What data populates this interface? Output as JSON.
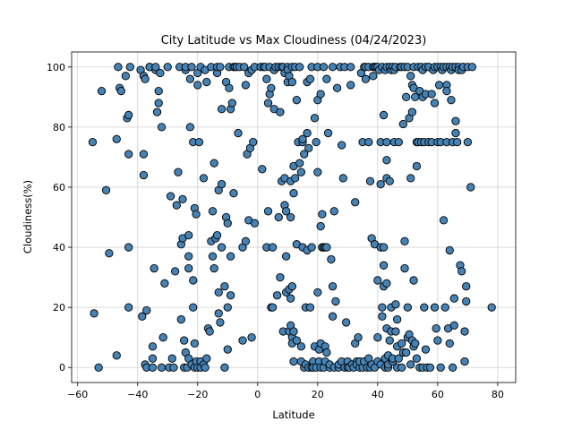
{
  "chart_data": {
    "type": "scatter",
    "title": "City Latitude vs Max Cloudiness (04/24/2023)",
    "xlabel": "Latitude",
    "ylabel": "Cloudiness(%)",
    "xlim": [
      -62,
      86
    ],
    "ylim": [
      -5,
      105
    ],
    "xticks": [
      -60,
      -40,
      -20,
      0,
      20,
      40,
      60,
      80
    ],
    "yticks": [
      0,
      20,
      40,
      60,
      80,
      100
    ],
    "grid": true,
    "marker_color": "#4682b4",
    "marker_edge_color": "#000000",
    "points": [
      [
        -55,
        75
      ],
      [
        -54.5,
        18
      ],
      [
        -53,
        0
      ],
      [
        -52,
        92
      ],
      [
        -50.5,
        59
      ],
      [
        -49.5,
        38
      ],
      [
        -47,
        76
      ],
      [
        -47,
        4
      ],
      [
        -46.5,
        100
      ],
      [
        -46,
        93
      ],
      [
        -45.5,
        92
      ],
      [
        -44,
        97
      ],
      [
        -43.5,
        83
      ],
      [
        -43,
        84
      ],
      [
        -43,
        71
      ],
      [
        -43,
        40
      ],
      [
        -43,
        20
      ],
      [
        -42.5,
        100
      ],
      [
        -39,
        99
      ],
      [
        -38.5,
        17
      ],
      [
        -38,
        97
      ],
      [
        -38,
        71
      ],
      [
        -38,
        64
      ],
      [
        -37.5,
        96
      ],
      [
        -37.5,
        1
      ],
      [
        -37,
        19
      ],
      [
        -37,
        0
      ],
      [
        -36,
        100
      ],
      [
        -36,
        100
      ],
      [
        -35,
        0
      ],
      [
        -35,
        3
      ],
      [
        -35,
        7
      ],
      [
        -34.5,
        33
      ],
      [
        -34,
        99
      ],
      [
        -34,
        100
      ],
      [
        -33.5,
        85
      ],
      [
        -33,
        92
      ],
      [
        -33,
        88
      ],
      [
        -32.5,
        98
      ],
      [
        -32,
        0
      ],
      [
        -32,
        80
      ],
      [
        -31.5,
        10
      ],
      [
        -31,
        28
      ],
      [
        -30,
        100
      ],
      [
        -29.5,
        0
      ],
      [
        -29,
        57
      ],
      [
        -28.5,
        3
      ],
      [
        -28,
        0
      ],
      [
        -27.5,
        32
      ],
      [
        -27,
        54
      ],
      [
        -26.5,
        65
      ],
      [
        -26,
        100
      ],
      [
        -25.5,
        16
      ],
      [
        -25.5,
        41
      ],
      [
        -25,
        43
      ],
      [
        -25,
        56
      ],
      [
        -24.5,
        9
      ],
      [
        -24.5,
        0
      ],
      [
        -24,
        99
      ],
      [
        -24,
        100
      ],
      [
        -24,
        5
      ],
      [
        -23.5,
        0
      ],
      [
        -23,
        3
      ],
      [
        -23,
        33
      ],
      [
        -23,
        37
      ],
      [
        -23,
        44
      ],
      [
        -22.5,
        80
      ],
      [
        -22.5,
        96
      ],
      [
        -22,
        100
      ],
      [
        -22,
        1
      ],
      [
        -21.5,
        75
      ],
      [
        -21.5,
        29
      ],
      [
        -21.5,
        20
      ],
      [
        -21,
        53
      ],
      [
        -21,
        0
      ],
      [
        -21,
        8
      ],
      [
        -20.5,
        51
      ],
      [
        -20.5,
        2
      ],
      [
        -20,
        98
      ],
      [
        -20,
        94
      ],
      [
        -20,
        0
      ],
      [
        -19.5,
        75
      ],
      [
        -19,
        100
      ],
      [
        -19,
        2
      ],
      [
        -19,
        0
      ],
      [
        -18,
        63
      ],
      [
        -18,
        1
      ],
      [
        -17.5,
        0
      ],
      [
        -17.5,
        99
      ],
      [
        -17,
        3
      ],
      [
        -17,
        95
      ],
      [
        -16.5,
        13
      ],
      [
        -16,
        12
      ],
      [
        -15.5,
        100
      ],
      [
        -15.5,
        42
      ],
      [
        -15,
        37
      ],
      [
        -15,
        52
      ],
      [
        -14.5,
        33
      ],
      [
        -14.5,
        68
      ],
      [
        -14,
        43
      ],
      [
        -13.5,
        98
      ],
      [
        -13.5,
        100
      ],
      [
        -13.5,
        44
      ],
      [
        -13,
        59
      ],
      [
        -13,
        25
      ],
      [
        -13,
        18
      ],
      [
        -12.5,
        100
      ],
      [
        -12.5,
        15
      ],
      [
        -12,
        61
      ],
      [
        -12,
        86
      ],
      [
        -12,
        40
      ],
      [
        -11,
        27
      ],
      [
        -11,
        0
      ],
      [
        -10.5,
        95
      ],
      [
        -10.5,
        50
      ],
      [
        -10,
        48
      ],
      [
        -10,
        20
      ],
      [
        -10,
        6
      ],
      [
        -9.5,
        93
      ],
      [
        -9.5,
        100
      ],
      [
        -9,
        86
      ],
      [
        -9,
        37
      ],
      [
        -9,
        24
      ],
      [
        -8.5,
        88
      ],
      [
        -8,
        58
      ],
      [
        -8,
        100
      ],
      [
        -7.5,
        100
      ],
      [
        -7,
        100
      ],
      [
        -6.5,
        78
      ],
      [
        -6,
        100
      ],
      [
        -5,
        40
      ],
      [
        -5,
        9
      ],
      [
        -4.5,
        100
      ],
      [
        -4,
        42
      ],
      [
        -4,
        94
      ],
      [
        -3.5,
        71
      ],
      [
        -3,
        49
      ],
      [
        -3,
        98
      ],
      [
        -2.5,
        73
      ],
      [
        -2,
        99
      ],
      [
        -2,
        10
      ],
      [
        -1.5,
        75
      ],
      [
        -1,
        100
      ],
      [
        -1,
        48
      ],
      [
        1,
        100
      ],
      [
        1.5,
        66
      ],
      [
        2,
        100
      ],
      [
        2.5,
        100
      ],
      [
        3,
        40
      ],
      [
        3,
        96
      ],
      [
        3.5,
        52
      ],
      [
        3.5,
        88
      ],
      [
        4,
        100
      ],
      [
        4,
        91
      ],
      [
        4.5,
        93
      ],
      [
        4.5,
        20
      ],
      [
        5,
        20
      ],
      [
        5,
        40
      ],
      [
        5.5,
        99
      ],
      [
        5.5,
        86
      ],
      [
        6,
        100
      ],
      [
        6.5,
        24
      ],
      [
        7,
        100
      ],
      [
        7,
        50
      ],
      [
        7.5,
        85
      ],
      [
        7.5,
        30
      ],
      [
        8,
        62
      ],
      [
        8,
        100
      ],
      [
        8.5,
        100
      ],
      [
        8.5,
        12
      ],
      [
        9,
        98
      ],
      [
        9,
        63
      ],
      [
        9,
        54
      ],
      [
        9.5,
        52
      ],
      [
        9.5,
        25
      ],
      [
        9.5,
        37
      ],
      [
        10,
        100
      ],
      [
        10,
        95
      ],
      [
        10,
        99
      ],
      [
        10.5,
        97
      ],
      [
        10.5,
        26
      ],
      [
        10.5,
        12
      ],
      [
        11,
        62
      ],
      [
        11,
        50
      ],
      [
        11,
        14
      ],
      [
        11,
        23
      ],
      [
        11.5,
        95
      ],
      [
        11.5,
        100
      ],
      [
        11.5,
        27
      ],
      [
        11.5,
        10
      ],
      [
        11.5,
        8
      ],
      [
        12,
        67
      ],
      [
        12,
        58
      ],
      [
        12,
        12
      ],
      [
        12,
        2
      ],
      [
        12.5,
        63
      ],
      [
        12.5,
        100
      ],
      [
        13,
        89
      ],
      [
        13,
        41
      ],
      [
        13,
        9
      ],
      [
        13.5,
        75
      ],
      [
        14,
        100
      ],
      [
        14,
        68
      ],
      [
        14.5,
        65
      ],
      [
        14.5,
        2
      ],
      [
        14.5,
        7
      ],
      [
        15,
        75
      ],
      [
        15,
        76
      ],
      [
        15,
        40
      ],
      [
        15.5,
        71
      ],
      [
        15.5,
        0
      ],
      [
        16,
        1
      ],
      [
        16,
        20
      ],
      [
        16.5,
        95
      ],
      [
        16.5,
        39
      ],
      [
        16.5,
        78
      ],
      [
        17,
        73
      ],
      [
        17,
        0
      ],
      [
        17.5,
        96
      ],
      [
        17.5,
        20
      ],
      [
        18,
        40
      ],
      [
        18,
        100
      ],
      [
        18,
        0
      ],
      [
        18.5,
        2
      ],
      [
        18.5,
        0
      ],
      [
        19,
        83
      ],
      [
        19,
        7
      ],
      [
        19.5,
        75
      ],
      [
        19.5,
        0
      ],
      [
        20,
        89
      ],
      [
        20,
        65
      ],
      [
        20,
        25
      ],
      [
        20,
        100
      ],
      [
        20.5,
        6
      ],
      [
        20.5,
        2
      ],
      [
        21,
        47
      ],
      [
        21,
        91
      ],
      [
        21,
        8
      ],
      [
        21,
        0
      ],
      [
        21.5,
        51
      ],
      [
        21.5,
        40
      ],
      [
        22,
        40
      ],
      [
        22,
        0
      ],
      [
        22,
        100
      ],
      [
        22.5,
        40
      ],
      [
        22.5,
        7
      ],
      [
        22.5,
        2
      ],
      [
        23,
        96
      ],
      [
        23,
        40
      ],
      [
        23,
        5
      ],
      [
        23.5,
        78
      ],
      [
        24,
        0
      ],
      [
        24,
        1
      ],
      [
        24.5,
        36
      ],
      [
        25,
        100
      ],
      [
        25,
        27
      ],
      [
        25,
        17
      ],
      [
        25.5,
        0
      ],
      [
        25.5,
        52
      ],
      [
        26,
        22
      ],
      [
        26.5,
        93
      ],
      [
        27,
        0
      ],
      [
        27,
        1
      ],
      [
        27.5,
        100
      ],
      [
        28,
        74
      ],
      [
        28,
        2
      ],
      [
        28.5,
        63
      ],
      [
        29,
        0
      ],
      [
        29,
        100
      ],
      [
        29.5,
        15
      ],
      [
        30,
        2
      ],
      [
        30,
        0
      ],
      [
        30.5,
        0
      ],
      [
        31,
        94
      ],
      [
        31,
        100
      ],
      [
        31.5,
        1
      ],
      [
        32,
        0
      ],
      [
        32.5,
        55
      ],
      [
        32.5,
        8
      ],
      [
        33,
        2
      ],
      [
        33,
        1
      ],
      [
        33.5,
        10
      ],
      [
        34,
        0
      ],
      [
        34,
        2
      ],
      [
        34.5,
        98
      ],
      [
        35,
        75
      ],
      [
        35,
        0
      ],
      [
        35.5,
        100
      ],
      [
        35.5,
        2
      ],
      [
        36,
        100
      ],
      [
        36,
        96
      ],
      [
        36.5,
        0
      ],
      [
        37,
        3
      ],
      [
        37,
        75
      ],
      [
        37,
        100
      ],
      [
        37.5,
        0
      ],
      [
        37.5,
        62
      ],
      [
        38,
        43
      ],
      [
        38,
        1
      ],
      [
        38.5,
        100
      ],
      [
        38.5,
        97
      ],
      [
        39,
        41
      ],
      [
        39,
        0
      ],
      [
        39,
        100
      ],
      [
        39.5,
        100
      ],
      [
        40,
        100
      ],
      [
        40,
        2
      ],
      [
        40,
        10
      ],
      [
        40,
        29
      ],
      [
        40.5,
        99
      ],
      [
        41,
        1
      ],
      [
        41,
        75
      ],
      [
        41,
        61
      ],
      [
        41,
        40
      ],
      [
        41.5,
        100
      ],
      [
        41.5,
        17
      ],
      [
        41.5,
        20
      ],
      [
        42,
        84
      ],
      [
        42,
        40
      ],
      [
        42,
        34
      ],
      [
        42,
        27
      ],
      [
        42.5,
        99
      ],
      [
        42.5,
        0
      ],
      [
        42.5,
        3
      ],
      [
        43,
        13
      ],
      [
        43,
        100
      ],
      [
        43,
        75
      ],
      [
        43,
        69
      ],
      [
        43,
        63
      ],
      [
        43,
        28
      ],
      [
        43.5,
        0
      ],
      [
        43.5,
        1
      ],
      [
        43.5,
        4
      ],
      [
        44,
        62
      ],
      [
        44,
        9
      ],
      [
        44,
        100
      ],
      [
        44.5,
        12
      ],
      [
        44.5,
        99
      ],
      [
        44.5,
        20
      ],
      [
        45,
        2
      ],
      [
        45,
        100
      ],
      [
        45,
        3
      ],
      [
        45.5,
        99
      ],
      [
        45.5,
        75
      ],
      [
        46,
        21
      ],
      [
        46,
        100
      ],
      [
        46,
        12
      ],
      [
        46.5,
        0
      ],
      [
        46.5,
        7
      ],
      [
        46.5,
        16
      ],
      [
        47,
        75
      ],
      [
        47,
        3
      ],
      [
        47.5,
        100
      ],
      [
        48,
        100
      ],
      [
        48,
        8
      ],
      [
        48,
        0
      ],
      [
        48.5,
        5
      ],
      [
        48.5,
        81
      ],
      [
        49,
        33
      ],
      [
        49,
        100
      ],
      [
        49,
        42
      ],
      [
        49.5,
        90
      ],
      [
        49.5,
        5
      ],
      [
        50,
        20
      ],
      [
        50,
        100
      ],
      [
        50,
        10
      ],
      [
        50.5,
        11
      ],
      [
        50.5,
        83
      ],
      [
        51,
        63
      ],
      [
        51,
        1
      ],
      [
        51,
        97
      ],
      [
        51.5,
        94
      ],
      [
        51.5,
        85
      ],
      [
        51.5,
        9
      ],
      [
        52,
        100
      ],
      [
        52,
        93
      ],
      [
        52,
        29
      ],
      [
        52,
        7
      ],
      [
        52.5,
        90
      ],
      [
        52.5,
        8
      ],
      [
        53,
        67
      ],
      [
        53,
        3
      ],
      [
        53,
        75
      ],
      [
        53.5,
        100
      ],
      [
        53.5,
        75
      ],
      [
        54,
        92
      ],
      [
        54,
        0
      ],
      [
        54.5,
        100
      ],
      [
        54.5,
        75
      ],
      [
        55,
        0
      ],
      [
        55,
        90
      ],
      [
        55,
        99
      ],
      [
        55.5,
        20
      ],
      [
        55.5,
        75
      ],
      [
        56,
        100
      ],
      [
        56,
        91
      ],
      [
        56,
        6
      ],
      [
        56.5,
        0
      ],
      [
        57,
        75
      ],
      [
        57,
        100
      ],
      [
        57,
        100
      ],
      [
        57.5,
        0
      ],
      [
        58,
        91
      ],
      [
        58,
        75
      ],
      [
        58.5,
        99
      ],
      [
        59,
        100
      ],
      [
        59,
        88
      ],
      [
        59,
        20
      ],
      [
        59.5,
        13
      ],
      [
        60,
        75
      ],
      [
        60,
        100
      ],
      [
        60,
        9
      ],
      [
        60.5,
        94
      ],
      [
        61,
        75
      ],
      [
        61,
        0
      ],
      [
        61,
        100
      ],
      [
        61.5,
        99
      ],
      [
        62,
        100
      ],
      [
        62,
        49
      ],
      [
        62.5,
        20
      ],
      [
        63,
        94
      ],
      [
        63,
        92
      ],
      [
        63,
        75
      ],
      [
        63,
        100
      ],
      [
        63.5,
        13
      ],
      [
        64,
        39
      ],
      [
        64,
        8
      ],
      [
        64,
        100
      ],
      [
        64.5,
        99
      ],
      [
        64.5,
        89
      ],
      [
        65,
        0
      ],
      [
        65,
        75
      ],
      [
        65,
        100
      ],
      [
        65.5,
        23
      ],
      [
        65.5,
        14
      ],
      [
        66,
        82
      ],
      [
        66,
        78
      ],
      [
        66,
        100
      ],
      [
        66.5,
        75
      ],
      [
        67,
        100
      ],
      [
        67,
        99
      ],
      [
        67.5,
        34
      ],
      [
        68,
        32
      ],
      [
        68,
        99
      ],
      [
        68.5,
        100
      ],
      [
        68.5,
        100
      ],
      [
        69,
        12
      ],
      [
        69,
        2
      ],
      [
        69.5,
        22
      ],
      [
        69.5,
        27
      ],
      [
        70,
        100
      ],
      [
        70,
        75
      ],
      [
        71,
        60
      ],
      [
        71.5,
        100
      ],
      [
        78,
        20
      ]
    ]
  }
}
